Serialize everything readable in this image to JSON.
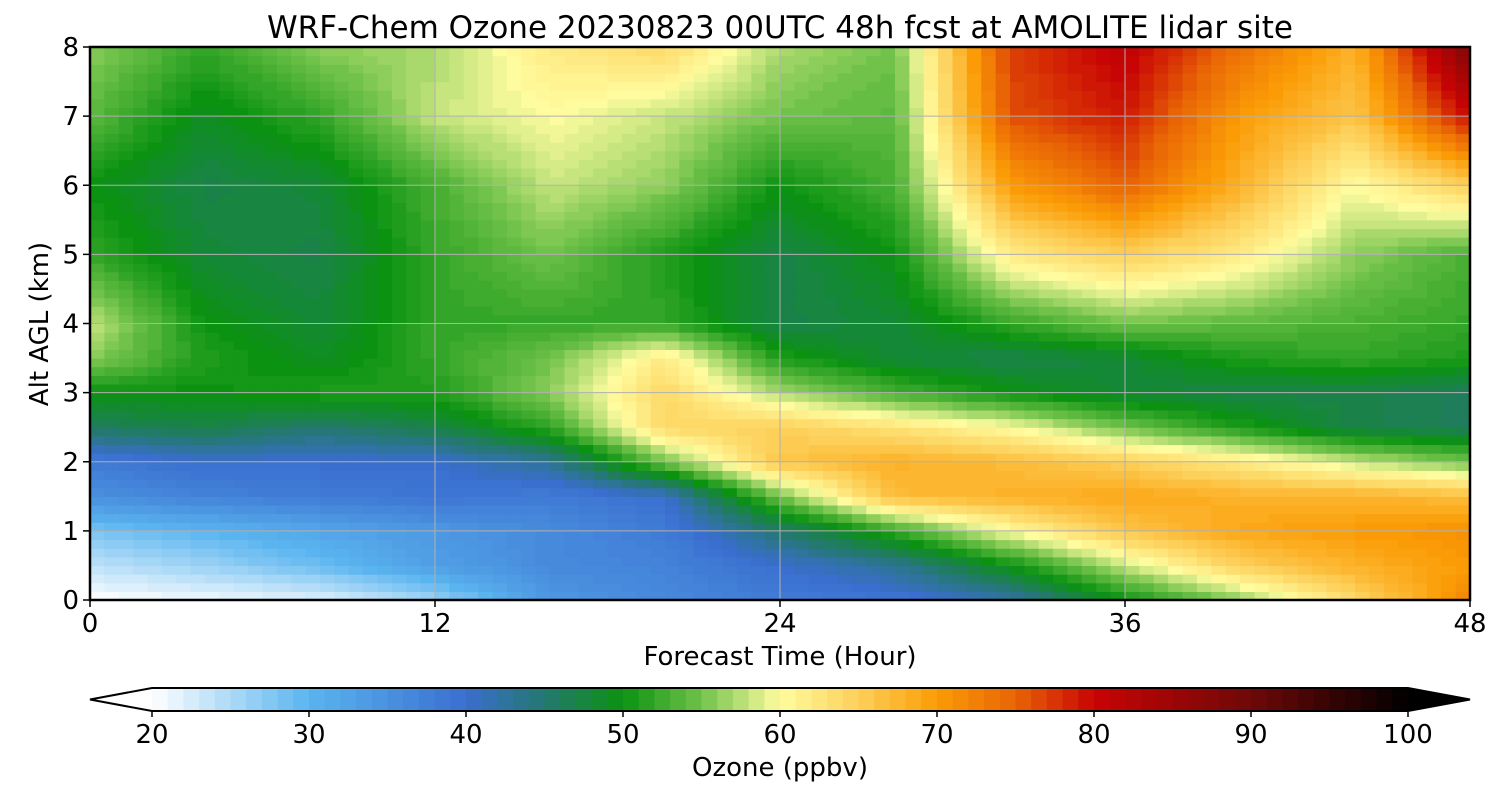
{
  "chart_data": {
    "type": "heatmap",
    "title": "WRF-Chem Ozone  20230823 00UTC 48h fcst at AMOLITE lidar site",
    "xlabel": "Forecast Time (Hour)",
    "ylabel": "Alt AGL (km)",
    "xlim": [
      0,
      48
    ],
    "ylim": [
      0,
      8
    ],
    "xticks": [
      "0",
      "12",
      "24",
      "36",
      "48"
    ],
    "yticks": [
      "0",
      "1",
      "2",
      "3",
      "4",
      "5",
      "6",
      "7",
      "8"
    ],
    "grid": true,
    "hours": [
      0,
      4,
      8,
      12,
      16,
      20,
      24,
      28,
      32,
      36,
      40,
      44,
      48
    ],
    "altitudes_km": [
      0,
      0.5,
      1,
      1.5,
      2,
      2.5,
      3,
      3.5,
      4,
      5,
      6,
      7,
      8
    ],
    "ozone_ppbv_by_altitude": [
      [
        20,
        21,
        22,
        26,
        34,
        36,
        38,
        39,
        42,
        50,
        56,
        64,
        72
      ],
      [
        24,
        26,
        29,
        33,
        36,
        37,
        40,
        43,
        50,
        58,
        65,
        68,
        70
      ],
      [
        28,
        30,
        32,
        34,
        36,
        38,
        45,
        52,
        60,
        66,
        69,
        70,
        71
      ],
      [
        35,
        37,
        38,
        39,
        38,
        40,
        55,
        67,
        68,
        69,
        68,
        68,
        67
      ],
      [
        38,
        40,
        40,
        40,
        43,
        55,
        66,
        68,
        67,
        65,
        62,
        58,
        55
      ],
      [
        46,
        47,
        45,
        47,
        52,
        64,
        65,
        63,
        60,
        55,
        51,
        47,
        46
      ],
      [
        50,
        50,
        51,
        51,
        56,
        64,
        57,
        53,
        50,
        48,
        47,
        47,
        46
      ],
      [
        56,
        51,
        49,
        52,
        55,
        62,
        51,
        48,
        47,
        48,
        51,
        52,
        51
      ],
      [
        58,
        50,
        48,
        52,
        52,
        52,
        47,
        48,
        52,
        55,
        54,
        53,
        52
      ],
      [
        52,
        48,
        47,
        52,
        55,
        51,
        47,
        50,
        62,
        65,
        62,
        56,
        53
      ],
      [
        50,
        47,
        48,
        53,
        58,
        56,
        50,
        53,
        70,
        75,
        68,
        60,
        65
      ],
      [
        54,
        49,
        52,
        58,
        60,
        58,
        55,
        54,
        76,
        79,
        70,
        66,
        80
      ],
      [
        56,
        52,
        56,
        57,
        62,
        64,
        57,
        55,
        77,
        81,
        74,
        68,
        88
      ]
    ],
    "colorbar": {
      "label": "Ozone  (ppbv)",
      "range": [
        20,
        100
      ],
      "ticks": [
        "20",
        "30",
        "40",
        "50",
        "60",
        "70",
        "80",
        "90",
        "100"
      ],
      "extend": "both",
      "colormap_stops": [
        {
          "v": 20,
          "c": "#ffffff"
        },
        {
          "v": 30,
          "c": "#5ab4ef"
        },
        {
          "v": 40,
          "c": "#3a6ecf"
        },
        {
          "v": 45,
          "c": "#24786f"
        },
        {
          "v": 50,
          "c": "#0b9211"
        },
        {
          "v": 55,
          "c": "#70c24a"
        },
        {
          "v": 60,
          "c": "#fffca0"
        },
        {
          "v": 65,
          "c": "#fdd05a"
        },
        {
          "v": 70,
          "c": "#fb9c06"
        },
        {
          "v": 75,
          "c": "#e86405"
        },
        {
          "v": 80,
          "c": "#c80404"
        },
        {
          "v": 90,
          "c": "#6e0808"
        },
        {
          "v": 100,
          "c": "#000000"
        }
      ]
    }
  }
}
